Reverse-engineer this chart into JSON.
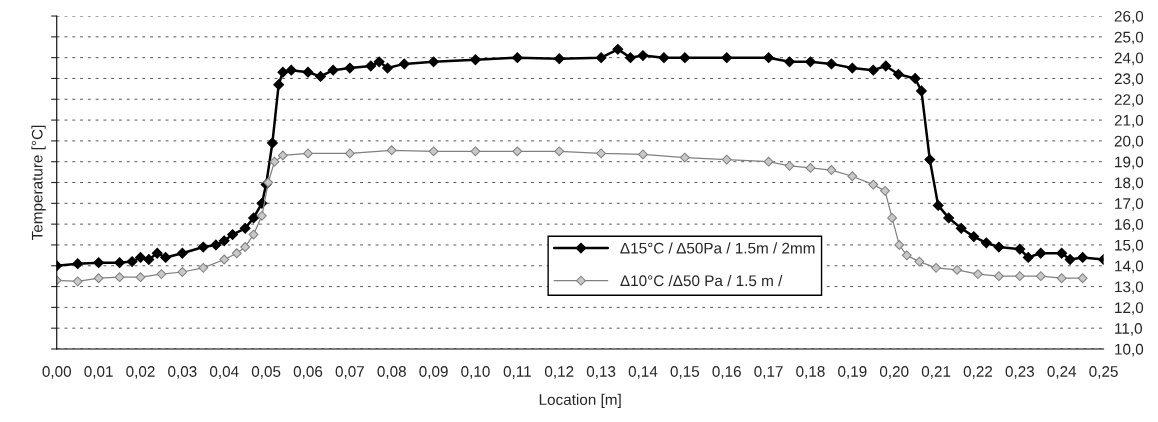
{
  "chart_data": {
    "type": "line",
    "xlabel": "Location [m]",
    "ylabel": "Temperature [°C]",
    "xlim": [
      0,
      0.25
    ],
    "ylim": [
      10,
      26
    ],
    "xticks": [
      {
        "value": 0,
        "label": "0,00"
      },
      {
        "value": 0.01,
        "label": "0,01"
      },
      {
        "value": 0.02,
        "label": "0,02"
      },
      {
        "value": 0.03,
        "label": "0,03"
      },
      {
        "value": 0.04,
        "label": "0,04"
      },
      {
        "value": 0.05,
        "label": "0,05"
      },
      {
        "value": 0.06,
        "label": "0,06"
      },
      {
        "value": 0.07,
        "label": "0,07"
      },
      {
        "value": 0.08,
        "label": "0,08"
      },
      {
        "value": 0.09,
        "label": "0,09"
      },
      {
        "value": 0.1,
        "label": "0,10"
      },
      {
        "value": 0.11,
        "label": "0,11"
      },
      {
        "value": 0.12,
        "label": "0,12"
      },
      {
        "value": 0.13,
        "label": "0,13"
      },
      {
        "value": 0.14,
        "label": "0,14"
      },
      {
        "value": 0.15,
        "label": "0,15"
      },
      {
        "value": 0.16,
        "label": "0,16"
      },
      {
        "value": 0.17,
        "label": "0,17"
      },
      {
        "value": 0.18,
        "label": "0,18"
      },
      {
        "value": 0.19,
        "label": "0,19"
      },
      {
        "value": 0.2,
        "label": "0,20"
      },
      {
        "value": 0.21,
        "label": "0,21"
      },
      {
        "value": 0.22,
        "label": "0,22"
      },
      {
        "value": 0.23,
        "label": "0,23"
      },
      {
        "value": 0.24,
        "label": "0,24"
      },
      {
        "value": 0.25,
        "label": "0,25"
      }
    ],
    "yticks": [
      {
        "value": 10,
        "label": "10,0"
      },
      {
        "value": 11,
        "label": "11,0"
      },
      {
        "value": 12,
        "label": "12,0"
      },
      {
        "value": 13,
        "label": "13,0"
      },
      {
        "value": 14,
        "label": "14,0"
      },
      {
        "value": 15,
        "label": "15,0"
      },
      {
        "value": 16,
        "label": "16,0"
      },
      {
        "value": 17,
        "label": "17,0"
      },
      {
        "value": 18,
        "label": "18,0"
      },
      {
        "value": 19,
        "label": "19,0"
      },
      {
        "value": 20,
        "label": "20,0"
      },
      {
        "value": 21,
        "label": "21,0"
      },
      {
        "value": 22,
        "label": "22,0"
      },
      {
        "value": 23,
        "label": "23,0"
      },
      {
        "value": 24,
        "label": "24,0"
      },
      {
        "value": 25,
        "label": "25,0"
      },
      {
        "value": 26,
        "label": "26,0"
      }
    ],
    "grid": "y",
    "legend": "center",
    "marker": "diamond",
    "line_style": "solid",
    "series": [
      {
        "name": "Δ15°C / Δ50Pa / 1.5m / 2mm",
        "color": "#000000",
        "x": [
          0,
          0.005,
          0.01,
          0.015,
          0.018,
          0.02,
          0.022,
          0.024,
          0.026,
          0.03,
          0.035,
          0.038,
          0.04,
          0.042,
          0.045,
          0.047,
          0.049,
          0.05,
          0.0515,
          0.053,
          0.054,
          0.056,
          0.06,
          0.063,
          0.066,
          0.07,
          0.075,
          0.077,
          0.079,
          0.083,
          0.09,
          0.1,
          0.11,
          0.12,
          0.13,
          0.134,
          0.137,
          0.14,
          0.145,
          0.15,
          0.16,
          0.17,
          0.175,
          0.18,
          0.185,
          0.19,
          0.195,
          0.198,
          0.201,
          0.205,
          0.2065,
          0.2085,
          0.2105,
          0.213,
          0.216,
          0.219,
          0.222,
          0.225,
          0.23,
          0.232,
          0.235,
          0.24,
          0.242,
          0.245,
          0.25
        ],
        "values": [
          14.0,
          14.1,
          14.15,
          14.15,
          14.2,
          14.4,
          14.3,
          14.6,
          14.4,
          14.6,
          14.9,
          15.0,
          15.2,
          15.5,
          15.8,
          16.3,
          17.0,
          17.9,
          19.9,
          22.7,
          23.3,
          23.4,
          23.3,
          23.1,
          23.4,
          23.5,
          23.6,
          23.8,
          23.5,
          23.7,
          23.8,
          23.9,
          24.0,
          23.95,
          24.0,
          24.4,
          24.0,
          24.1,
          24.0,
          24.0,
          24.0,
          24.0,
          23.8,
          23.8,
          23.7,
          23.5,
          23.4,
          23.6,
          23.2,
          23.0,
          22.4,
          19.1,
          16.9,
          16.3,
          15.8,
          15.4,
          15.1,
          14.9,
          14.8,
          14.4,
          14.6,
          14.6,
          14.3,
          14.4,
          14.3
        ]
      },
      {
        "name": "Δ10°C /Δ50 Pa / 1.5 m /",
        "color": "#808080",
        "x": [
          0,
          0.005,
          0.01,
          0.015,
          0.02,
          0.025,
          0.03,
          0.035,
          0.04,
          0.043,
          0.045,
          0.047,
          0.049,
          0.0505,
          0.052,
          0.054,
          0.06,
          0.07,
          0.08,
          0.09,
          0.1,
          0.11,
          0.12,
          0.13,
          0.14,
          0.15,
          0.16,
          0.17,
          0.175,
          0.18,
          0.185,
          0.19,
          0.195,
          0.1978,
          0.1995,
          0.2012,
          0.203,
          0.206,
          0.21,
          0.215,
          0.22,
          0.225,
          0.23,
          0.235,
          0.24,
          0.245
        ],
        "values": [
          13.3,
          13.25,
          13.4,
          13.45,
          13.45,
          13.6,
          13.7,
          13.9,
          14.3,
          14.6,
          14.9,
          15.5,
          16.4,
          18.0,
          19.0,
          19.3,
          19.4,
          19.4,
          19.55,
          19.5,
          19.5,
          19.5,
          19.5,
          19.4,
          19.35,
          19.2,
          19.1,
          19.0,
          18.8,
          18.7,
          18.6,
          18.3,
          17.9,
          17.6,
          16.3,
          15.0,
          14.5,
          14.2,
          13.9,
          13.8,
          13.6,
          13.5,
          13.5,
          13.5,
          13.4,
          13.4
        ]
      }
    ]
  }
}
